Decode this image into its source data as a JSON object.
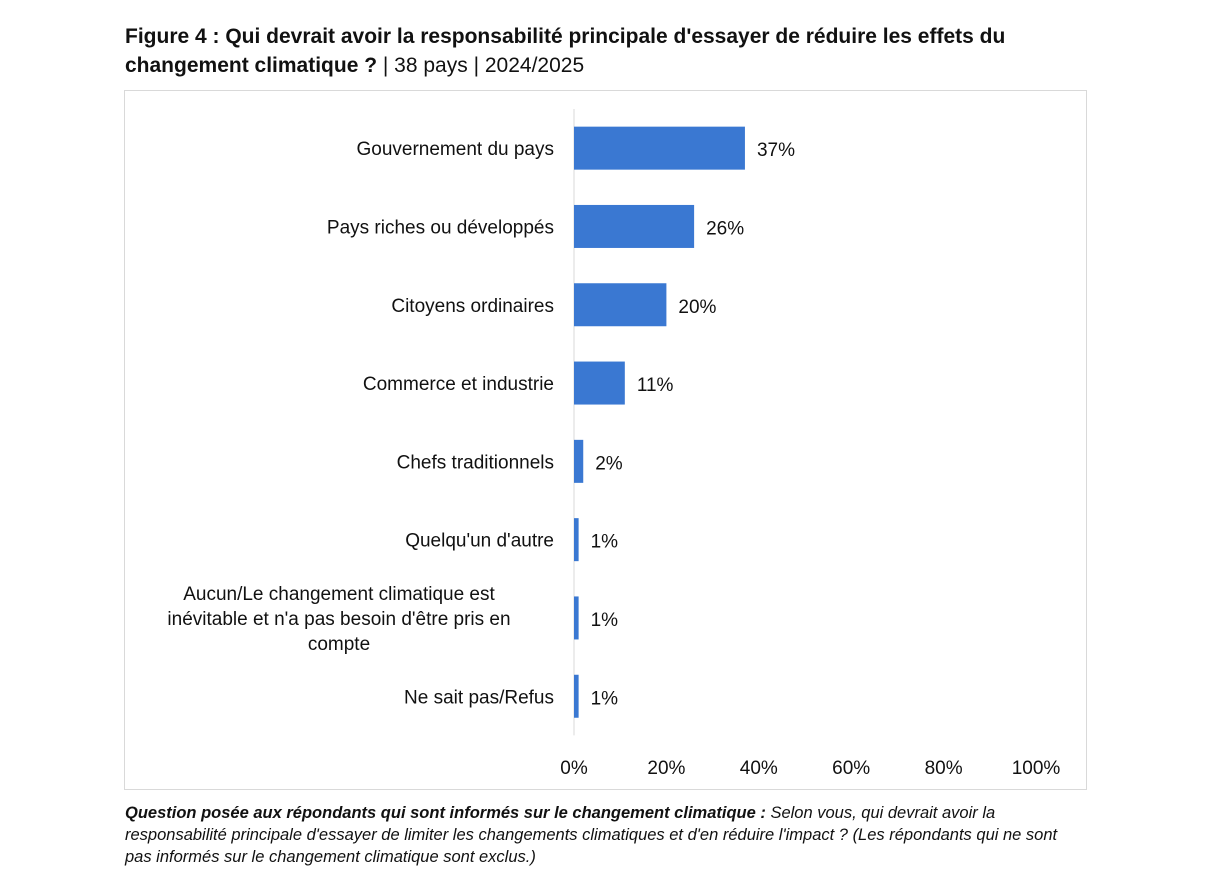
{
  "figure": {
    "title_bold": "Figure 4 : Qui devrait avoir la responsabilité principale d'essayer de réduire les effets du changement climatique ?",
    "title_meta": " | 38 pays | 2024/2025"
  },
  "footnote": {
    "label": "Question posée aux répondants qui sont informés sur le changement climatique :",
    "text": " Selon vous, qui devrait avoir la responsabilité principale d'essayer de limiter les changements climatiques et d'en réduire l'impact ? (Les répondants qui ne sont pas informés sur le changement climatique sont exclus.)"
  },
  "colors": {
    "bar": "#3a78d2",
    "axis": "#d9d9d9"
  },
  "chart_data": {
    "type": "bar",
    "orientation": "horizontal",
    "title": "Figure 4 : Qui devrait avoir la responsabilité principale d'essayer de réduire les effets du changement climatique ? | 38 pays | 2024/2025",
    "categories": [
      [
        "Gouvernement du pays"
      ],
      [
        "Pays riches ou développés"
      ],
      [
        "Citoyens ordinaires"
      ],
      [
        "Commerce et industrie"
      ],
      [
        "Chefs traditionnels"
      ],
      [
        "Quelqu'un d'autre"
      ],
      [
        "Aucun/Le changement climatique est",
        "inévitable et n'a pas besoin d'être pris en",
        "compte"
      ],
      [
        "Ne sait pas/Refus"
      ]
    ],
    "values": [
      37,
      26,
      20,
      11,
      2,
      1,
      1,
      1
    ],
    "value_labels": [
      "37%",
      "26%",
      "20%",
      "11%",
      "2%",
      "1%",
      "1%",
      "1%"
    ],
    "xlim": [
      0,
      100
    ],
    "xticks": [
      0,
      20,
      40,
      60,
      80,
      100
    ],
    "xtick_labels": [
      "0%",
      "20%",
      "40%",
      "60%",
      "80%",
      "100%"
    ],
    "xlabel": "",
    "ylabel": "",
    "grid": false,
    "legend": "none"
  }
}
